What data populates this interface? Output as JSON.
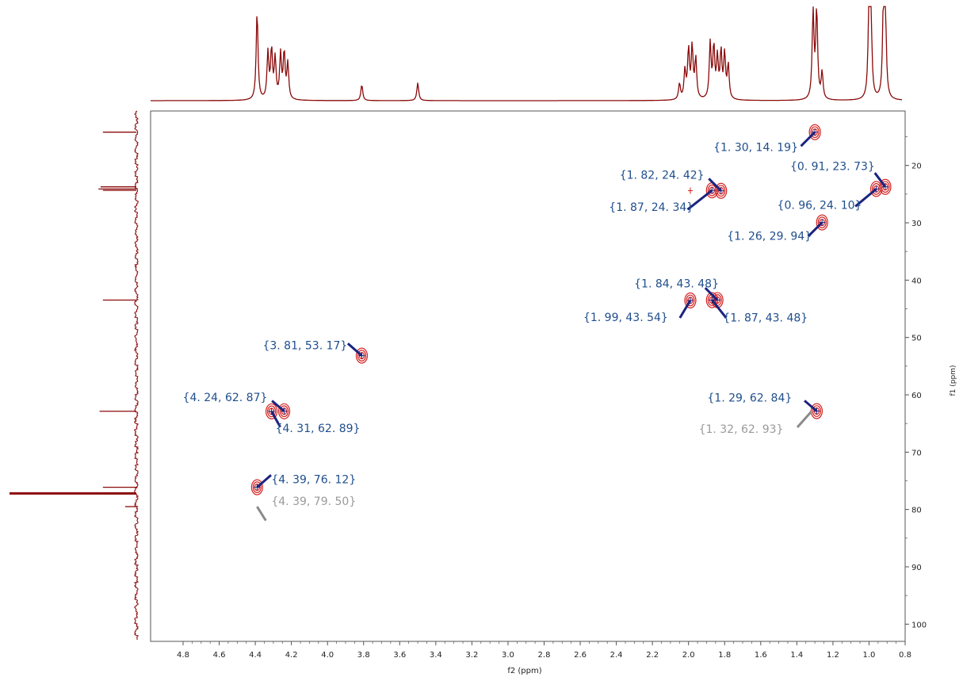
{
  "chart_data": {
    "type": "scatter",
    "title": "",
    "xlabel": "f2 (ppm)",
    "ylabel": "f1 (ppm)",
    "x_axis": {
      "range": [
        4.98,
        0.8
      ],
      "ticks": [
        4.8,
        4.6,
        4.4,
        4.2,
        4.0,
        3.8,
        3.6,
        3.4,
        3.2,
        3.0,
        2.8,
        2.6,
        2.4,
        2.2,
        2.0,
        1.8,
        1.6,
        1.4,
        1.2,
        1.0,
        0.8
      ],
      "tick_labels": [
        "4.8",
        "4.6",
        "4.4",
        "4.2",
        "4.0",
        "3.8",
        "3.6",
        "3.4",
        "3.2",
        "3.0",
        "2.8",
        "2.6",
        "2.4",
        "2.2",
        "2.0",
        "1.8",
        "1.6",
        "1.4",
        "1.2",
        "1.0",
        "0.8"
      ]
    },
    "y_axis": {
      "range": [
        10.5,
        103
      ],
      "ticks": [
        20,
        30,
        40,
        50,
        60,
        70,
        80,
        90,
        100
      ],
      "tick_labels": [
        "20",
        "30",
        "40",
        "50",
        "60",
        "70",
        "80",
        "90",
        "100"
      ],
      "position": "right"
    },
    "grid": false,
    "colors": {
      "contour": "#d42020",
      "peak_label": "#1f4e8c",
      "ghost_label": "#9a9a9a",
      "arrow": "#1a237e",
      "ghost_arrow": "#8a8a8a",
      "projection": "#8b0a0a",
      "frame": "#555555"
    },
    "peaks": [
      {
        "x": 1.3,
        "y": 14.19,
        "label": "{1. 30, 14. 19}",
        "style": "normal"
      },
      {
        "x": 1.82,
        "y": 24.42,
        "label": "{1. 82, 24. 42}",
        "style": "normal"
      },
      {
        "x": 1.87,
        "y": 24.34,
        "label": "{1. 87, 24. 34}",
        "style": "normal"
      },
      {
        "x": 0.91,
        "y": 23.73,
        "label": "{0. 91, 23. 73}",
        "style": "normal"
      },
      {
        "x": 0.96,
        "y": 24.1,
        "label": "{0. 96, 24. 10}",
        "style": "normal"
      },
      {
        "x": 1.26,
        "y": 29.94,
        "label": "{1. 26, 29. 94}",
        "style": "normal"
      },
      {
        "x": 1.84,
        "y": 43.48,
        "label": "{1. 84, 43. 48}",
        "style": "normal"
      },
      {
        "x": 1.99,
        "y": 43.54,
        "label": "{1. 99, 43. 54}",
        "style": "normal"
      },
      {
        "x": 1.87,
        "y": 43.48,
        "label": "{1. 87, 43. 48}",
        "style": "normal"
      },
      {
        "x": 3.81,
        "y": 53.17,
        "label": "{3. 81, 53. 17}",
        "style": "normal"
      },
      {
        "x": 4.24,
        "y": 62.87,
        "label": "{4. 24, 62. 87}",
        "style": "normal"
      },
      {
        "x": 4.31,
        "y": 62.89,
        "label": "{4. 31, 62. 89}",
        "style": "normal"
      },
      {
        "x": 1.29,
        "y": 62.84,
        "label": "{1. 29, 62. 84}",
        "style": "normal"
      },
      {
        "x": 1.32,
        "y": 62.93,
        "label": "{1. 32, 62. 93}",
        "style": "ghost"
      },
      {
        "x": 4.39,
        "y": 76.12,
        "label": "{4. 39, 76. 12}",
        "style": "normal"
      },
      {
        "x": 4.39,
        "y": 79.5,
        "label": "{4. 39, 79. 50}",
        "style": "ghost"
      }
    ],
    "f2_projection_peaks": [
      {
        "x": 4.39,
        "h": 1.0
      },
      {
        "x": 4.33,
        "h": 0.52
      },
      {
        "x": 4.31,
        "h": 0.55
      },
      {
        "x": 4.29,
        "h": 0.45
      },
      {
        "x": 4.26,
        "h": 0.5
      },
      {
        "x": 4.24,
        "h": 0.52
      },
      {
        "x": 4.22,
        "h": 0.4
      },
      {
        "x": 3.81,
        "h": 0.18
      },
      {
        "x": 3.5,
        "h": 0.2
      },
      {
        "x": 2.05,
        "h": 0.18
      },
      {
        "x": 2.02,
        "h": 0.32
      },
      {
        "x": 2.0,
        "h": 0.55
      },
      {
        "x": 1.98,
        "h": 0.58
      },
      {
        "x": 1.96,
        "h": 0.45
      },
      {
        "x": 1.88,
        "h": 0.62
      },
      {
        "x": 1.86,
        "h": 0.58
      },
      {
        "x": 1.84,
        "h": 0.45
      },
      {
        "x": 1.82,
        "h": 0.52
      },
      {
        "x": 1.8,
        "h": 0.5
      },
      {
        "x": 1.78,
        "h": 0.38
      },
      {
        "x": 1.31,
        "h": 1.0
      },
      {
        "x": 1.29,
        "h": 1.0
      },
      {
        "x": 1.26,
        "h": 0.3
      },
      {
        "x": 1.0,
        "h": 1.0
      },
      {
        "x": 0.99,
        "h": 1.0
      },
      {
        "x": 0.92,
        "h": 1.0
      },
      {
        "x": 0.91,
        "h": 1.0
      }
    ],
    "f1_projection_peaks": [
      {
        "y": 14.19,
        "h": 0.3
      },
      {
        "y": 23.73,
        "h": 0.32
      },
      {
        "y": 24.1,
        "h": 0.34
      },
      {
        "y": 24.34,
        "h": 0.3
      },
      {
        "y": 43.48,
        "h": 0.3
      },
      {
        "y": 62.87,
        "h": 0.33
      },
      {
        "y": 76.12,
        "h": 0.3
      },
      {
        "y": 77.2,
        "h": 1.0
      },
      {
        "y": 79.5,
        "h": 0.1
      }
    ]
  }
}
